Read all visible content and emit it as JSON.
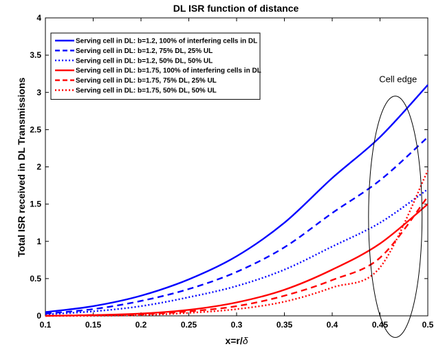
{
  "chart_data": {
    "type": "line",
    "title": "DL  ISR function of distance",
    "xlabel_prefix": "x=r/",
    "xlabel_symbol": "δ",
    "ylabel": "Total ISR received in DL Transmissions",
    "xlim": [
      0.1,
      0.5
    ],
    "ylim": [
      0,
      4
    ],
    "xticks": [
      "0.1",
      "0.15",
      "0.2",
      "0.25",
      "0.3",
      "0.35",
      "0.4",
      "0.45",
      "0.5"
    ],
    "yticks": [
      "0",
      "0.5",
      "1",
      "1.5",
      "2",
      "2.5",
      "3",
      "3.5",
      "4"
    ],
    "grid": false,
    "legend_position": "top-left",
    "x": [
      0.1,
      0.15,
      0.2,
      0.25,
      0.3,
      0.35,
      0.4,
      0.45,
      0.5
    ],
    "series": [
      {
        "name": "Serving cell in DL: b=1.2, 100% of interfering cells in DL",
        "color": "#0000ff",
        "style": "solid",
        "values": [
          0.05,
          0.13,
          0.27,
          0.49,
          0.8,
          1.25,
          1.85,
          2.4,
          3.1
        ]
      },
      {
        "name": "Serving cell in DL: b=1.2, 75% DL, 25% UL",
        "color": "#0000ff",
        "style": "dashed",
        "values": [
          0.03,
          0.09,
          0.2,
          0.36,
          0.59,
          0.92,
          1.38,
          1.82,
          2.4
        ]
      },
      {
        "name": "Serving cell in DL: b=1.2, 50% DL, 50% UL",
        "color": "#0000ff",
        "style": "dotted",
        "values": [
          0.02,
          0.06,
          0.13,
          0.25,
          0.4,
          0.62,
          0.93,
          1.25,
          1.7
        ]
      },
      {
        "name": "Serving cell in DL: b=1.75, 100% of interfering cells in DL",
        "color": "#ff0000",
        "style": "solid",
        "values": [
          0.0,
          0.01,
          0.03,
          0.08,
          0.18,
          0.35,
          0.62,
          0.97,
          1.5
        ]
      },
      {
        "name": "Serving cell in DL: b=1.75, 75% DL, 25% UL",
        "color": "#ff0000",
        "style": "dashed",
        "values": [
          0.0,
          0.01,
          0.02,
          0.06,
          0.13,
          0.27,
          0.48,
          0.78,
          1.6
        ]
      },
      {
        "name": "Serving cell in DL: b=1.75, 50% DL, 50% UL",
        "color": "#ff0000",
        "style": "dotted",
        "values": [
          0.0,
          0.0,
          0.01,
          0.04,
          0.09,
          0.19,
          0.38,
          0.65,
          1.95
        ]
      }
    ],
    "annotation": {
      "text": "Cell edge",
      "cx": 0.466,
      "cy": 1.33,
      "rx": 0.028,
      "ry": 1.62
    }
  }
}
